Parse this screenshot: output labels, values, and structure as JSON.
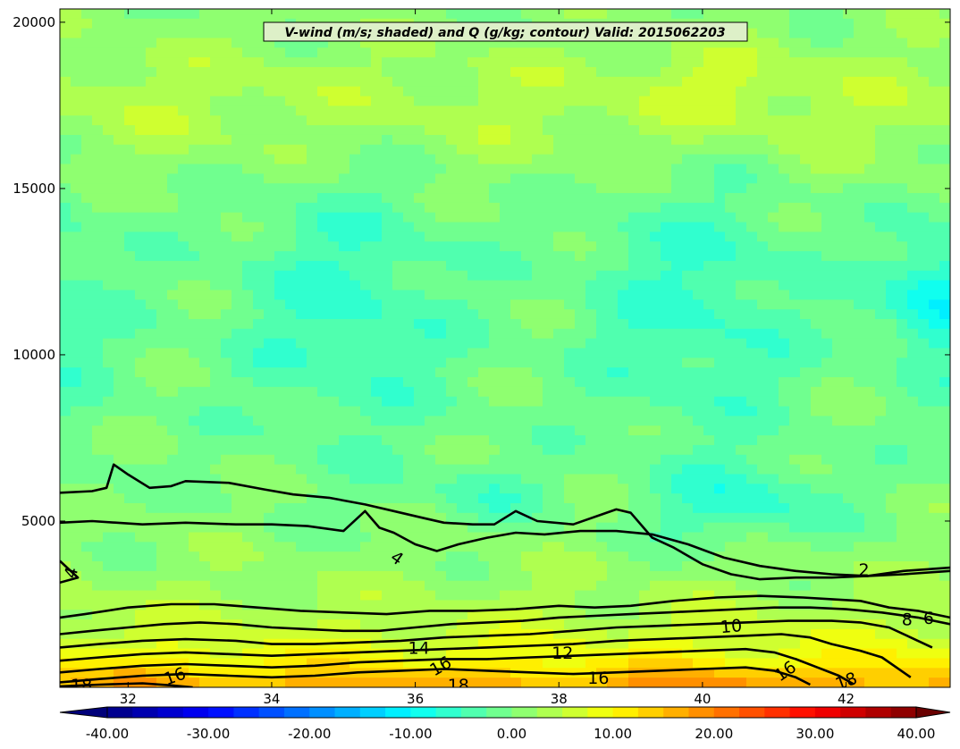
{
  "chart_data": {
    "type": "heatmap",
    "title": "V-wind (m/s; shaded) and Q (g/kg; contour) Valid: 2015062203",
    "xlabel": "",
    "ylabel": "",
    "xlim": [
      31.05,
      43.45
    ],
    "ylim": [
      0,
      20400
    ],
    "x_ticks": [
      "32",
      "34",
      "36",
      "38",
      "40",
      "42"
    ],
    "x_tick_values": [
      32,
      34,
      36,
      38,
      40,
      42
    ],
    "y_ticks": [
      "5000",
      "10000",
      "15000",
      "20000"
    ],
    "y_tick_values": [
      5000,
      10000,
      15000,
      20000
    ],
    "grid": false,
    "colorbar": {
      "range": [
        -40,
        40
      ],
      "levels": 32,
      "extend": "both",
      "orientation": "horizontal",
      "placement": "bottom",
      "tick_labels": [
        "-40.00",
        "-30.00",
        "-20.00",
        "-10.00",
        "0.00",
        "10.00",
        "20.00",
        "30.00",
        "40.00"
      ],
      "tick_values": [
        -40,
        -30,
        -20,
        -10,
        0,
        10,
        20,
        30,
        40
      ]
    },
    "shading_regions": [
      {
        "description": "near-surface maximum",
        "x": 36.8,
        "y": 300,
        "value": 18
      },
      {
        "description": "near-surface maximum",
        "x": 40.3,
        "y": 400,
        "value": 20
      },
      {
        "description": "lower-level positive band",
        "x": 34.5,
        "y": 1800,
        "value": 12
      },
      {
        "description": "mid-level weak negative",
        "x": 40.7,
        "y": 5300,
        "value": -8
      },
      {
        "description": "upper-level negative",
        "x": 43.1,
        "y": 11700,
        "value": -12
      },
      {
        "description": "upper-level positive",
        "x": 40.2,
        "y": 18000,
        "value": 9
      }
    ],
    "contours": [
      {
        "level": 2,
        "label": "2",
        "points": [
          [
            31.05,
            5850
          ],
          [
            31.5,
            5900
          ],
          [
            31.7,
            6000
          ],
          [
            31.8,
            6700
          ],
          [
            32.0,
            6400
          ],
          [
            32.3,
            6000
          ],
          [
            32.6,
            6050
          ],
          [
            32.8,
            6200
          ],
          [
            33.4,
            6150
          ],
          [
            33.9,
            5950
          ],
          [
            34.3,
            5800
          ],
          [
            34.8,
            5700
          ],
          [
            35.3,
            5500
          ],
          [
            35.8,
            5250
          ],
          [
            36.1,
            5100
          ],
          [
            36.4,
            4950
          ],
          [
            36.8,
            4900
          ],
          [
            37.1,
            4900
          ],
          [
            37.4,
            5300
          ],
          [
            37.7,
            5000
          ],
          [
            38.2,
            4900
          ],
          [
            38.6,
            5200
          ],
          [
            38.8,
            5350
          ],
          [
            39.0,
            5250
          ],
          [
            39.3,
            4500
          ],
          [
            39.6,
            4200
          ],
          [
            40.0,
            3700
          ],
          [
            40.4,
            3400
          ],
          [
            40.8,
            3250
          ],
          [
            41.3,
            3300
          ],
          [
            41.8,
            3300
          ],
          [
            42.3,
            3350
          ],
          [
            42.8,
            3500
          ],
          [
            43.45,
            3600
          ]
        ]
      },
      {
        "level": 4,
        "label": "4",
        "points": [
          [
            31.05,
            4950
          ],
          [
            31.5,
            5000
          ],
          [
            32.2,
            4900
          ],
          [
            32.8,
            4950
          ],
          [
            33.5,
            4900
          ],
          [
            34.0,
            4900
          ],
          [
            34.5,
            4850
          ],
          [
            35.0,
            4700
          ],
          [
            35.3,
            5300
          ],
          [
            35.5,
            4800
          ],
          [
            35.7,
            4650
          ],
          [
            36.0,
            4300
          ],
          [
            36.3,
            4100
          ],
          [
            36.6,
            4300
          ],
          [
            37.0,
            4500
          ],
          [
            37.4,
            4650
          ],
          [
            37.8,
            4600
          ],
          [
            38.3,
            4700
          ],
          [
            38.8,
            4700
          ],
          [
            39.3,
            4600
          ],
          [
            39.8,
            4300
          ],
          [
            40.3,
            3900
          ],
          [
            40.8,
            3650
          ],
          [
            41.3,
            3500
          ],
          [
            41.8,
            3400
          ],
          [
            42.3,
            3350
          ],
          [
            42.8,
            3400
          ],
          [
            43.45,
            3500
          ]
        ]
      },
      {
        "level": 4,
        "label": "",
        "points": [
          [
            31.05,
            3800
          ],
          [
            31.3,
            3300
          ],
          [
            31.05,
            3150
          ]
        ]
      },
      {
        "level": 6,
        "label": "6",
        "points": [
          [
            31.05,
            2100
          ],
          [
            31.4,
            2200
          ],
          [
            32.0,
            2400
          ],
          [
            32.6,
            2500
          ],
          [
            33.2,
            2500
          ],
          [
            33.8,
            2400
          ],
          [
            34.4,
            2300
          ],
          [
            35.0,
            2250
          ],
          [
            35.6,
            2200
          ],
          [
            36.2,
            2300
          ],
          [
            36.8,
            2300
          ],
          [
            37.4,
            2350
          ],
          [
            38.0,
            2450
          ],
          [
            38.5,
            2400
          ],
          [
            39.0,
            2450
          ],
          [
            39.6,
            2600
          ],
          [
            40.2,
            2700
          ],
          [
            40.8,
            2750
          ],
          [
            41.4,
            2700
          ],
          [
            41.8,
            2650
          ],
          [
            42.2,
            2600
          ],
          [
            42.6,
            2400
          ],
          [
            43.0,
            2300
          ],
          [
            43.45,
            2100
          ]
        ]
      },
      {
        "level": 8,
        "label": "8",
        "points": [
          [
            31.05,
            1600
          ],
          [
            31.5,
            1700
          ],
          [
            32.0,
            1800
          ],
          [
            32.5,
            1900
          ],
          [
            33.0,
            1950
          ],
          [
            33.5,
            1900
          ],
          [
            34.0,
            1800
          ],
          [
            34.5,
            1750
          ],
          [
            35.0,
            1700
          ],
          [
            35.5,
            1700
          ],
          [
            36.0,
            1800
          ],
          [
            36.5,
            1900
          ],
          [
            37.0,
            1950
          ],
          [
            37.5,
            2000
          ],
          [
            38.0,
            2100
          ],
          [
            38.5,
            2150
          ],
          [
            39.0,
            2200
          ],
          [
            39.5,
            2250
          ],
          [
            40.0,
            2300
          ],
          [
            40.5,
            2350
          ],
          [
            41.0,
            2400
          ],
          [
            41.5,
            2400
          ],
          [
            42.0,
            2350
          ],
          [
            42.5,
            2250
          ],
          [
            43.0,
            2100
          ],
          [
            43.45,
            1900
          ]
        ]
      },
      {
        "level": 10,
        "label": "10",
        "points": [
          [
            31.05,
            1200
          ],
          [
            31.6,
            1300
          ],
          [
            32.2,
            1400
          ],
          [
            32.8,
            1450
          ],
          [
            33.5,
            1400
          ],
          [
            34.0,
            1300
          ],
          [
            34.6,
            1300
          ],
          [
            35.2,
            1350
          ],
          [
            35.8,
            1400
          ],
          [
            36.4,
            1500
          ],
          [
            37.0,
            1550
          ],
          [
            37.6,
            1600
          ],
          [
            38.2,
            1700
          ],
          [
            38.8,
            1800
          ],
          [
            39.4,
            1850
          ],
          [
            40.0,
            1900
          ],
          [
            40.6,
            1950
          ],
          [
            41.2,
            2000
          ],
          [
            41.8,
            2000
          ],
          [
            42.2,
            1950
          ],
          [
            42.6,
            1800
          ],
          [
            42.9,
            1500
          ],
          [
            43.2,
            1200
          ]
        ]
      },
      {
        "level": 12,
        "label": "12",
        "points": [
          [
            31.05,
            800
          ],
          [
            31.6,
            900
          ],
          [
            32.2,
            1000
          ],
          [
            32.8,
            1050
          ],
          [
            33.4,
            1000
          ],
          [
            34.0,
            950
          ],
          [
            34.6,
            1000
          ],
          [
            35.2,
            1050
          ],
          [
            35.8,
            1100
          ],
          [
            36.4,
            1150
          ],
          [
            37.0,
            1200
          ],
          [
            37.6,
            1250
          ],
          [
            38.2,
            1300
          ],
          [
            38.8,
            1400
          ],
          [
            39.4,
            1450
          ],
          [
            40.0,
            1500
          ],
          [
            40.6,
            1550
          ],
          [
            41.1,
            1600
          ],
          [
            41.5,
            1500
          ],
          [
            41.8,
            1300
          ],
          [
            42.2,
            1100
          ],
          [
            42.5,
            900
          ],
          [
            42.7,
            600
          ],
          [
            42.9,
            300
          ]
        ]
      },
      {
        "level": 14,
        "label": "14",
        "points": [
          [
            31.05,
            450
          ],
          [
            31.6,
            550
          ],
          [
            32.2,
            650
          ],
          [
            32.8,
            700
          ],
          [
            33.4,
            650
          ],
          [
            34.0,
            600
          ],
          [
            34.6,
            650
          ],
          [
            35.2,
            750
          ],
          [
            35.8,
            800
          ],
          [
            36.4,
            850
          ],
          [
            37.0,
            850
          ],
          [
            37.6,
            900
          ],
          [
            38.2,
            950
          ],
          [
            38.8,
            1000
          ],
          [
            39.4,
            1050
          ],
          [
            40.0,
            1100
          ],
          [
            40.6,
            1150
          ],
          [
            41.0,
            1050
          ],
          [
            41.3,
            850
          ],
          [
            41.6,
            600
          ],
          [
            41.9,
            350
          ],
          [
            42.1,
            100
          ]
        ]
      },
      {
        "level": 16,
        "label": "16",
        "points": [
          [
            31.05,
            150
          ],
          [
            31.6,
            250
          ],
          [
            32.2,
            350
          ],
          [
            32.8,
            400
          ],
          [
            33.4,
            350
          ],
          [
            34.0,
            300
          ],
          [
            34.6,
            350
          ],
          [
            35.2,
            450
          ],
          [
            35.8,
            500
          ],
          [
            36.4,
            550
          ],
          [
            37.0,
            500
          ],
          [
            37.6,
            450
          ],
          [
            38.2,
            400
          ],
          [
            38.8,
            450
          ],
          [
            39.4,
            500
          ],
          [
            40.0,
            550
          ],
          [
            40.6,
            600
          ],
          [
            41.0,
            500
          ],
          [
            41.3,
            300
          ],
          [
            41.5,
            80
          ]
        ]
      },
      {
        "level": 18,
        "label": "18",
        "points": [
          [
            31.05,
            30
          ],
          [
            31.6,
            80
          ],
          [
            32.2,
            120
          ],
          [
            32.6,
            60
          ],
          [
            32.9,
            0
          ]
        ]
      }
    ],
    "contour_labels": [
      {
        "text": "2",
        "x": 42.25,
        "y": 3550,
        "angle": 0
      },
      {
        "text": "4",
        "x": 35.75,
        "y": 3900,
        "angle": 35
      },
      {
        "text": "4",
        "x": 31.2,
        "y": 3450,
        "angle": -75
      },
      {
        "text": "10",
        "x": 40.4,
        "y": 1850,
        "angle": -5
      },
      {
        "text": "8",
        "x": 42.85,
        "y": 2050,
        "angle": 0
      },
      {
        "text": "6",
        "x": 43.15,
        "y": 2100,
        "angle": 0
      },
      {
        "text": "14",
        "x": 36.05,
        "y": 1200,
        "angle": 0
      },
      {
        "text": "12",
        "x": 38.05,
        "y": 1050,
        "angle": 0
      },
      {
        "text": "16",
        "x": 36.35,
        "y": 650,
        "angle": -30
      },
      {
        "text": "16",
        "x": 32.65,
        "y": 350,
        "angle": -20
      },
      {
        "text": "16",
        "x": 38.55,
        "y": 300,
        "angle": 0
      },
      {
        "text": "16",
        "x": 41.15,
        "y": 500,
        "angle": -35
      },
      {
        "text": "18",
        "x": 31.35,
        "y": 80,
        "angle": 0
      },
      {
        "text": "18",
        "x": 36.6,
        "y": 80,
        "angle": 0
      },
      {
        "text": "18",
        "x": 42.0,
        "y": 200,
        "angle": -20
      }
    ]
  }
}
